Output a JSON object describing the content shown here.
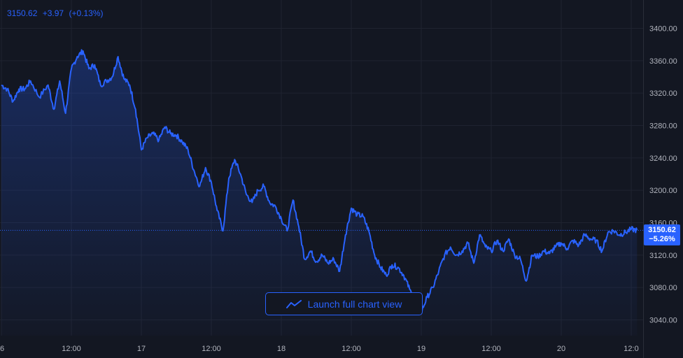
{
  "header": {
    "price": "3150.62",
    "change": "+3.97",
    "change_pct": "(+0.13%)"
  },
  "price_tag": {
    "price": "3150.62",
    "change_pct": "−5.26%"
  },
  "launch_button": {
    "label": "Launch full chart view",
    "icon": "chart-line-icon"
  },
  "colors": {
    "background": "#131722",
    "line": "#2962ff",
    "axis_text": "#b2b5be",
    "grid": "#1f2330"
  },
  "chart_data": {
    "type": "area",
    "y_ticks": [
      "3400.00",
      "3360.00",
      "3320.00",
      "3280.00",
      "3240.00",
      "3200.00",
      "3160.00",
      "3120.00",
      "3080.00",
      "3040.00"
    ],
    "y_tick_values": [
      3400,
      3360,
      3320,
      3280,
      3240,
      3200,
      3160,
      3120,
      3080,
      3040
    ],
    "x_ticks": [
      "6",
      "12:00",
      "17",
      "12:00",
      "18",
      "12:00",
      "19",
      "12:00",
      "20",
      "12:0"
    ],
    "x_tick_hours": [
      0,
      12,
      24,
      36,
      48,
      60,
      72,
      84,
      96,
      108
    ],
    "ylim": [
      3020,
      3420
    ],
    "xlim": [
      0,
      109
    ],
    "last_value": 3150.62,
    "grid": true,
    "x": [
      0,
      1,
      2,
      3,
      4,
      5,
      6.5,
      8,
      9,
      10,
      11,
      12,
      13,
      14,
      15,
      16,
      17,
      18,
      19,
      20,
      21,
      22,
      23,
      24,
      25,
      26,
      27,
      28,
      29,
      30,
      31,
      32,
      33,
      34,
      35,
      36,
      37,
      38,
      39,
      40,
      41,
      42,
      43,
      44,
      45,
      46,
      47,
      48,
      49,
      50,
      51,
      52,
      53,
      54,
      55,
      56,
      57,
      58,
      59,
      60,
      61,
      62,
      63,
      64,
      65,
      66,
      67,
      68,
      69,
      70,
      71,
      72,
      73,
      74,
      75,
      76,
      77,
      78,
      79,
      80,
      81,
      82,
      83,
      84,
      85,
      86,
      87,
      88,
      89,
      90,
      91,
      92,
      93,
      94,
      95,
      96,
      97,
      98,
      99,
      100,
      101,
      102,
      103,
      104,
      105,
      106,
      107,
      108,
      109
    ],
    "values": [
      3330,
      3325,
      3310,
      3325,
      3325,
      3335,
      3315,
      3330,
      3300,
      3335,
      3295,
      3350,
      3365,
      3372,
      3350,
      3355,
      3330,
      3335,
      3340,
      3365,
      3338,
      3330,
      3300,
      3250,
      3265,
      3270,
      3262,
      3278,
      3270,
      3268,
      3260,
      3250,
      3225,
      3205,
      3228,
      3210,
      3175,
      3150,
      3215,
      3238,
      3220,
      3195,
      3185,
      3200,
      3205,
      3185,
      3180,
      3165,
      3150,
      3188,
      3155,
      3115,
      3125,
      3112,
      3120,
      3110,
      3115,
      3100,
      3145,
      3178,
      3170,
      3168,
      3150,
      3120,
      3105,
      3095,
      3108,
      3105,
      3095,
      3078,
      3060,
      3050,
      3068,
      3080,
      3100,
      3120,
      3130,
      3120,
      3125,
      3135,
      3110,
      3145,
      3130,
      3125,
      3138,
      3125,
      3140,
      3120,
      3115,
      3088,
      3120,
      3118,
      3125,
      3122,
      3130,
      3135,
      3128,
      3138,
      3132,
      3145,
      3140,
      3138,
      3125,
      3148,
      3150,
      3145,
      3148,
      3152,
      3150.62
    ]
  }
}
